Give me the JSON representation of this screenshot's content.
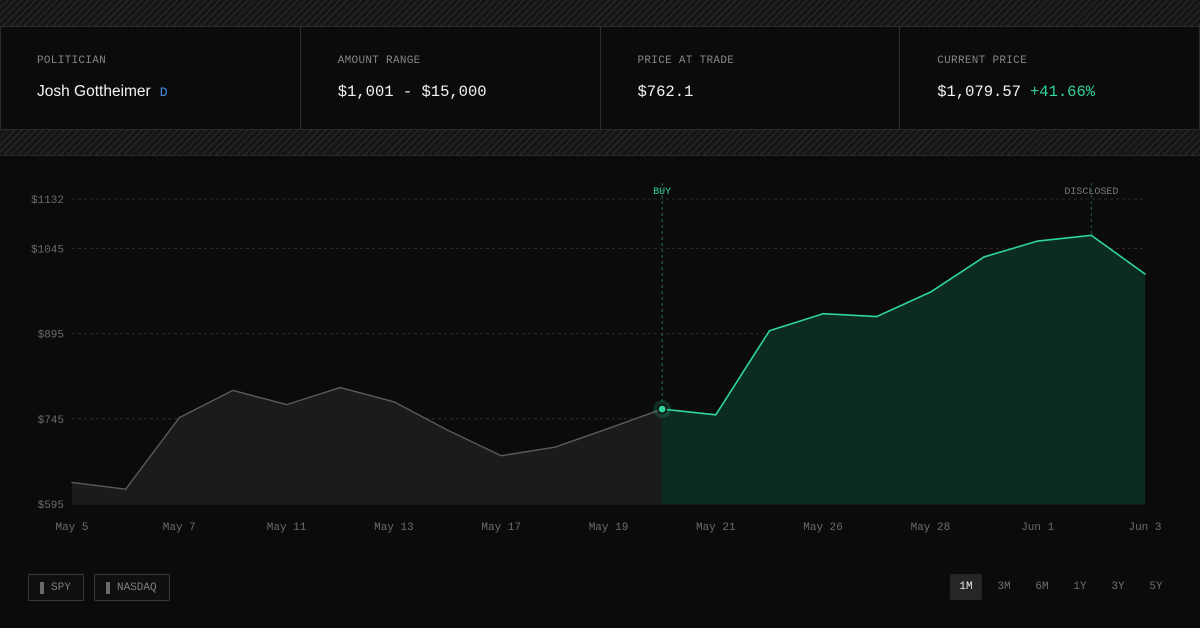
{
  "stats": {
    "politician": {
      "label": "POLITICIAN",
      "name": "Josh Gottheimer",
      "party": "D"
    },
    "amount": {
      "label": "AMOUNT RANGE",
      "value": "$1,001 - $15,000"
    },
    "trade_price": {
      "label": "PRICE AT TRADE",
      "value": "$762.1"
    },
    "current_price": {
      "label": "CURRENT PRICE",
      "value": "$1,079.57",
      "change": "+41.66%"
    }
  },
  "colors": {
    "accent": "#2fd59a",
    "party": "#4b8fe8",
    "pre_trade_line": "#5a5a5a",
    "post_trade_fill": "#0c2b21"
  },
  "chart_data": {
    "type": "area",
    "x": [
      "May 5",
      "May 6",
      "May 7",
      "May 8",
      "May 11",
      "May 12",
      "May 13",
      "May 14",
      "May 17",
      "May 18",
      "May 19",
      "May 20",
      "May 21",
      "May 24",
      "May 26",
      "May 27",
      "May 28",
      "May 31",
      "Jun 1",
      "Jun 2",
      "Jun 3"
    ],
    "y": [
      633,
      621,
      747,
      795,
      770,
      800,
      775,
      725,
      680,
      695,
      728,
      762.1,
      752,
      900,
      930,
      925,
      968,
      1030,
      1058,
      1068,
      1000
    ],
    "tick_labels": [
      "May 5",
      "May 7",
      "May 11",
      "May 13",
      "May 17",
      "May 19",
      "May 21",
      "May 26",
      "May 28",
      "Jun 1",
      "Jun 3"
    ],
    "tick_index": [
      0,
      2,
      4,
      6,
      8,
      10,
      12,
      14,
      16,
      18,
      20
    ],
    "y_ticks": [
      595,
      745,
      895,
      1045,
      1132
    ],
    "y_tick_labels": [
      "$595",
      "$745",
      "$895",
      "$1045",
      "$1132"
    ],
    "ylim": [
      595,
      1132
    ],
    "grid": true,
    "buy_index": 11,
    "disclosed_index": 19,
    "annotations": {
      "buy": "BUY",
      "disclosed": "DISCLOSED"
    }
  },
  "toggles": [
    {
      "label": "SPY"
    },
    {
      "label": "NASDAQ"
    }
  ],
  "ranges": [
    {
      "label": "1M",
      "active": true
    },
    {
      "label": "3M",
      "active": false
    },
    {
      "label": "6M",
      "active": false
    },
    {
      "label": "1Y",
      "active": false
    },
    {
      "label": "3Y",
      "active": false
    },
    {
      "label": "5Y",
      "active": false
    }
  ]
}
